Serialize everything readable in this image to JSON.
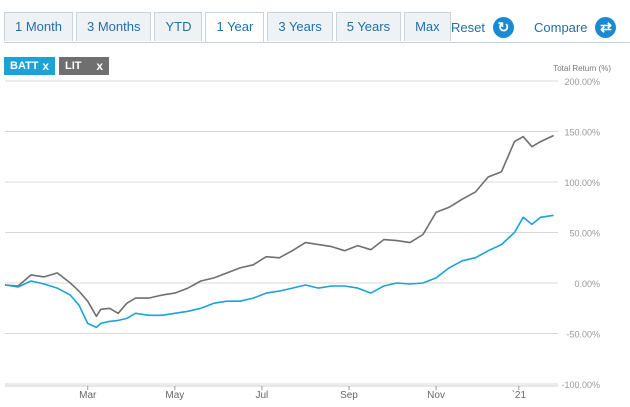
{
  "tabs": [
    {
      "label": "1 Month",
      "active": false
    },
    {
      "label": "3 Months",
      "active": false
    },
    {
      "label": "YTD",
      "active": false
    },
    {
      "label": "1 Year",
      "active": true
    },
    {
      "label": "3 Years",
      "active": false
    },
    {
      "label": "5 Years",
      "active": false
    },
    {
      "label": "Max",
      "active": false
    }
  ],
  "actions": {
    "reset_label": "Reset",
    "reset_icon": "refresh-icon",
    "compare_label": "Compare",
    "compare_icon": "swap-icon"
  },
  "chips": [
    {
      "label": "BATT",
      "close": "x",
      "color": "#1aa3d4"
    },
    {
      "label": "LIT",
      "close": "x",
      "color": "#6f6f6f"
    }
  ],
  "chart_data": {
    "type": "line",
    "ylabel": "Total Return (%)",
    "ylim": [
      -100,
      200
    ],
    "yticks": [
      "200.00%",
      "150.00%",
      "100.00%",
      "50.00%",
      "0.00%",
      "-50.00%",
      "-100.00%"
    ],
    "ytick_values": [
      200,
      150,
      100,
      50,
      0,
      -50,
      -100
    ],
    "xticks": [
      "Mar",
      "May",
      "Jul",
      "Sep",
      "Nov",
      "`21"
    ],
    "xtick_positions": [
      1.9,
      3.9,
      5.9,
      7.9,
      9.9,
      11.8
    ],
    "xlim": [
      0,
      12.7
    ],
    "grid": true,
    "series": [
      {
        "name": "LIT",
        "color": "#6f6f6f",
        "x": [
          0.0,
          0.3,
          0.6,
          0.9,
          1.2,
          1.5,
          1.7,
          1.9,
          2.1,
          2.2,
          2.4,
          2.6,
          2.8,
          3.0,
          3.3,
          3.6,
          3.9,
          4.2,
          4.5,
          4.8,
          5.1,
          5.4,
          5.7,
          6.0,
          6.3,
          6.6,
          6.9,
          7.2,
          7.5,
          7.8,
          8.1,
          8.4,
          8.7,
          9.0,
          9.3,
          9.6,
          9.9,
          10.2,
          10.5,
          10.8,
          11.1,
          11.4,
          11.7,
          11.9,
          12.1,
          12.3,
          12.6
        ],
        "y": [
          -2,
          -3,
          8,
          6,
          10,
          0,
          -8,
          -18,
          -33,
          -26,
          -25,
          -30,
          -20,
          -15,
          -15,
          -12,
          -10,
          -5,
          2,
          5,
          10,
          15,
          18,
          26,
          25,
          32,
          40,
          38,
          36,
          32,
          37,
          33,
          43,
          42,
          40,
          48,
          70,
          75,
          83,
          90,
          105,
          110,
          140,
          145,
          135,
          140,
          146
        ]
      },
      {
        "name": "BATT",
        "color": "#1aa3d4",
        "x": [
          0.0,
          0.3,
          0.6,
          0.9,
          1.2,
          1.5,
          1.7,
          1.9,
          2.1,
          2.2,
          2.4,
          2.6,
          2.8,
          3.0,
          3.3,
          3.6,
          3.9,
          4.2,
          4.5,
          4.8,
          5.1,
          5.4,
          5.7,
          6.0,
          6.3,
          6.6,
          6.9,
          7.2,
          7.5,
          7.8,
          8.1,
          8.4,
          8.7,
          9.0,
          9.3,
          9.6,
          9.9,
          10.2,
          10.5,
          10.8,
          11.1,
          11.4,
          11.7,
          11.9,
          12.1,
          12.3,
          12.6
        ],
        "y": [
          -2,
          -4,
          2,
          -1,
          -5,
          -12,
          -22,
          -40,
          -44,
          -40,
          -38,
          -37,
          -35,
          -30,
          -32,
          -32,
          -30,
          -28,
          -25,
          -20,
          -18,
          -18,
          -15,
          -10,
          -8,
          -5,
          -2,
          -5,
          -3,
          -3,
          -5,
          -10,
          -3,
          0,
          -1,
          0,
          5,
          15,
          22,
          25,
          32,
          38,
          50,
          65,
          58,
          65,
          67
        ]
      }
    ]
  }
}
